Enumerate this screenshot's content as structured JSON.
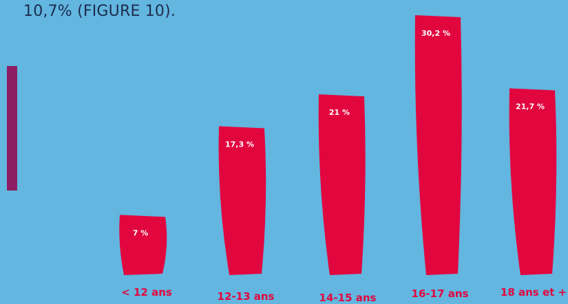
{
  "text": {
    "heading": "10,7% (FIGURE 10)."
  },
  "colors": {
    "background": "#62b6df",
    "bar": "#e2063f",
    "category_label": "#e2063f",
    "value_label": "#ffffff",
    "accent": "#8e1c64"
  },
  "chart_data": {
    "type": "bar",
    "categories": [
      "< 12 ans",
      "12-13 ans",
      "14-15 ans",
      "16-17 ans",
      "18 ans et +"
    ],
    "values": [
      7,
      17.3,
      21,
      30.2,
      21.7
    ],
    "value_labels": [
      "7 %",
      "17,3 %",
      "21 %",
      "30,2 %",
      "21,7 %"
    ],
    "title": "",
    "xlabel": "",
    "ylabel": "",
    "ylim": [
      0,
      31
    ]
  }
}
